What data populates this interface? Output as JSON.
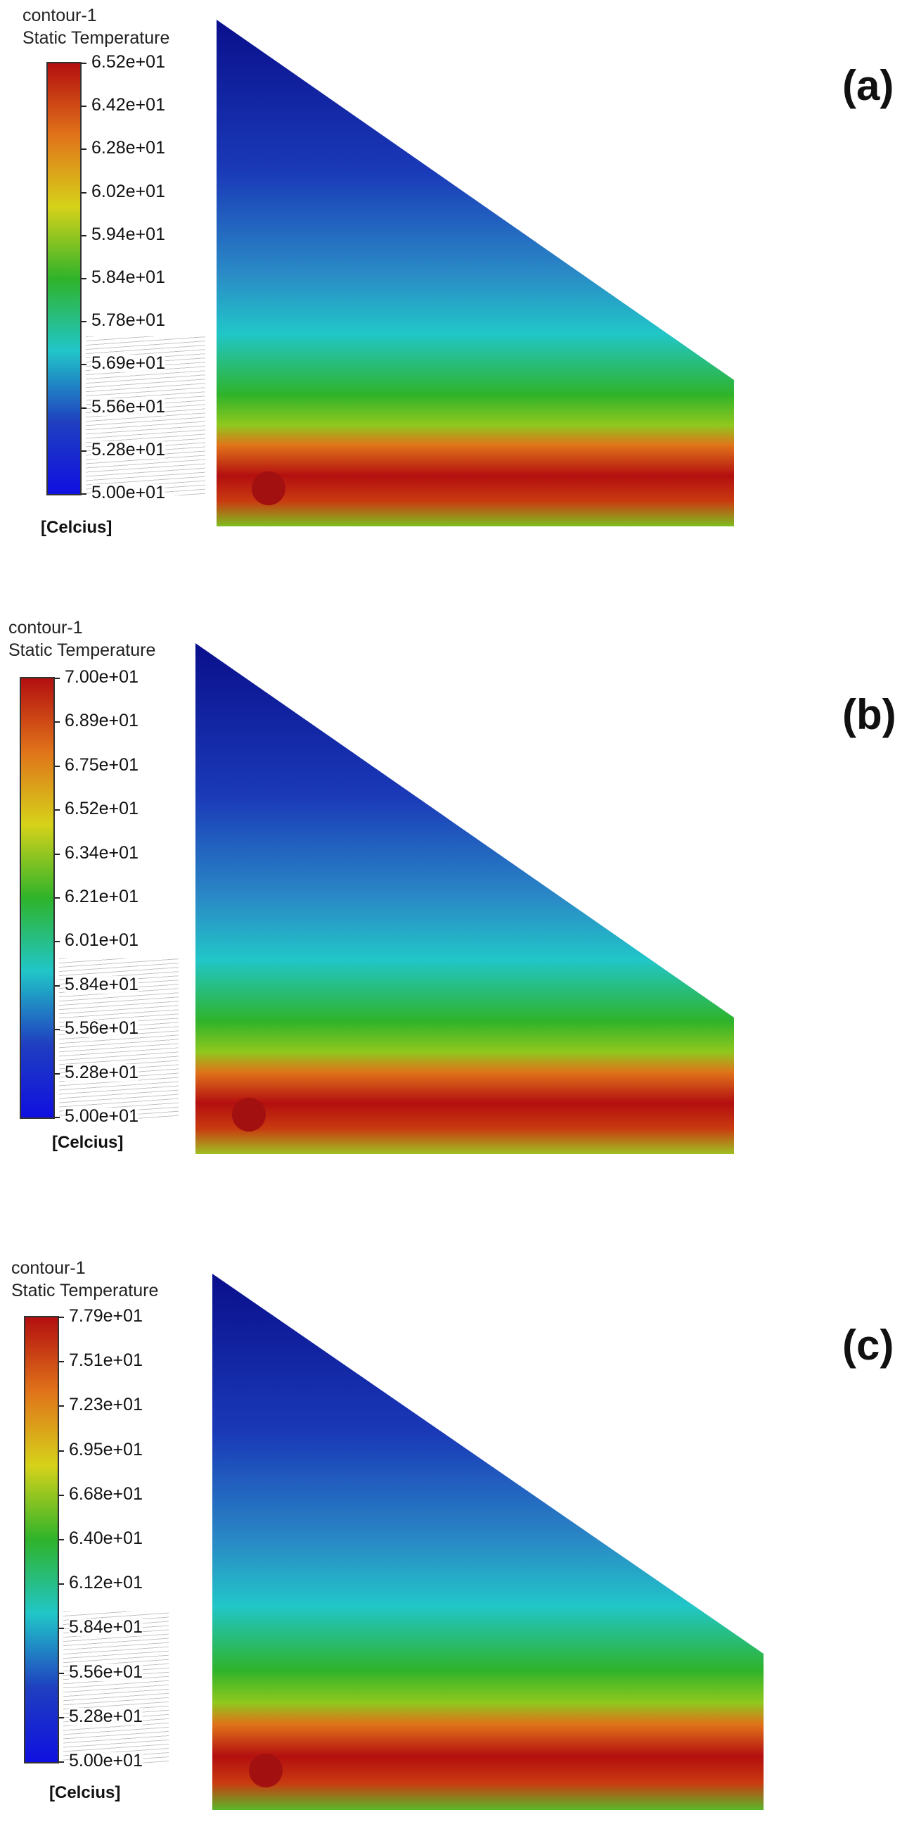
{
  "panels": [
    {
      "id": "a",
      "label": "(a)",
      "contour_name": "contour-1",
      "variable": "Static Temperature",
      "unit": "[Celcius]",
      "ticks": [
        "6.52e+01",
        "6.42e+01",
        "6.28e+01",
        "6.02e+01",
        "5.94e+01",
        "5.84e+01",
        "5.78e+01",
        "5.69e+01",
        "5.56e+01",
        "5.28e+01",
        "5.00e+01"
      ]
    },
    {
      "id": "b",
      "label": "(b)",
      "contour_name": "contour-1",
      "variable": "Static Temperature",
      "unit": "[Celcius]",
      "ticks": [
        "7.00e+01",
        "6.89e+01",
        "6.75e+01",
        "6.52e+01",
        "6.34e+01",
        "6.21e+01",
        "6.01e+01",
        "5.84e+01",
        "5.56e+01",
        "5.28e+01",
        "5.00e+01"
      ]
    },
    {
      "id": "c",
      "label": "(c)",
      "contour_name": "contour-1",
      "variable": "Static Temperature",
      "unit": "[Celcius]",
      "ticks": [
        "7.79e+01",
        "7.51e+01",
        "7.23e+01",
        "6.95e+01",
        "6.68e+01",
        "6.40e+01",
        "6.12e+01",
        "5.84e+01",
        "5.56e+01",
        "5.28e+01",
        "5.00e+01"
      ]
    }
  ],
  "colors": {
    "cold": "#0a0f8c",
    "cool": "#1f3fc0",
    "cyan": "#21c6c8",
    "green": "#2fb32a",
    "yellow": "#d6d21a",
    "orange": "#e0731a",
    "hot": "#b30f0f",
    "heat_source": "#a31010"
  }
}
